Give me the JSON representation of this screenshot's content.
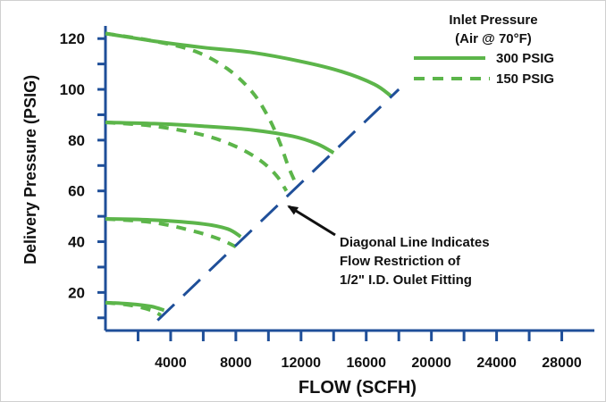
{
  "chart_data": {
    "type": "line",
    "title": "",
    "xlabel": "FLOW (SCFH)",
    "ylabel": "Delivery Pressure (PSIG)",
    "xlim": [
      0,
      30000
    ],
    "ylim": [
      5,
      125
    ],
    "x_ticks": [
      4000,
      8000,
      12000,
      16000,
      20000,
      24000,
      28000
    ],
    "x_tick_labels": [
      "4000",
      "8000",
      "12000",
      "16000",
      "20000",
      "24000",
      "28000"
    ],
    "y_ticks": [
      20,
      40,
      60,
      80,
      100,
      120
    ],
    "y_tick_labels": [
      "20",
      "40",
      "60",
      "80",
      "100",
      "120"
    ],
    "grid": false,
    "legend": {
      "title_line1": "Inlet Pressure",
      "title_line2": "(Air @ 70°F)",
      "placement": "top-right",
      "entries": [
        "300 PSIG",
        "150 PSIG"
      ]
    },
    "series": [
      {
        "name": "300 PSIG",
        "style": "solid",
        "color": "#5cb54a",
        "curves": [
          {
            "x": [
              0,
              3000,
              6000,
              9000,
              12000,
              14500,
              16500,
              17500
            ],
            "y": [
              122,
              119,
              116.5,
              114.5,
              111,
              107,
              102,
              97.5
            ]
          },
          {
            "x": [
              0,
              3000,
              6000,
              9000,
              11500,
              13000,
              14000
            ],
            "y": [
              87,
              86.5,
              85.5,
              84,
              81.5,
              78.5,
              75
            ]
          },
          {
            "x": [
              0,
              3000,
              6000,
              7500,
              8300
            ],
            "y": [
              49,
              48.5,
              47,
              45,
              42
            ]
          },
          {
            "x": [
              0,
              1500,
              2800,
              3600
            ],
            "y": [
              16,
              15.5,
              14.5,
              13
            ]
          }
        ]
      },
      {
        "name": "150 PSIG",
        "style": "dashed",
        "color": "#5cb54a",
        "curves": [
          {
            "x": [
              0,
              3000,
              5500,
              7500,
              9000,
              10000,
              10700,
              11200,
              11600
            ],
            "y": [
              122,
              119,
              115,
              108,
              99,
              89,
              79,
              70,
              64
            ]
          },
          {
            "x": [
              0,
              3000,
              6000,
              8000,
              9500,
              10500,
              11100
            ],
            "y": [
              87,
              85.5,
              82,
              77.5,
              72,
              66,
              60
            ]
          },
          {
            "x": [
              0,
              3000,
              5500,
              7000,
              8000
            ],
            "y": [
              49,
              47.5,
              44,
              41,
              38
            ]
          },
          {
            "x": [
              0,
              1500,
              2800,
              3400
            ],
            "y": [
              16,
              15,
              13,
              11
            ]
          }
        ]
      },
      {
        "name": "Flow restriction line",
        "style": "long-dash",
        "color": "#1f4f99",
        "curves": [
          {
            "x": [
              3200,
              18000
            ],
            "y": [
              9,
              100
            ]
          }
        ]
      }
    ],
    "annotation": {
      "lines": [
        "Diagonal Line Indicates",
        "Flow Restriction of",
        "1/2\" I.D. Oulet Fitting"
      ],
      "arrow_to": {
        "x": 10800,
        "y": 57
      }
    }
  }
}
